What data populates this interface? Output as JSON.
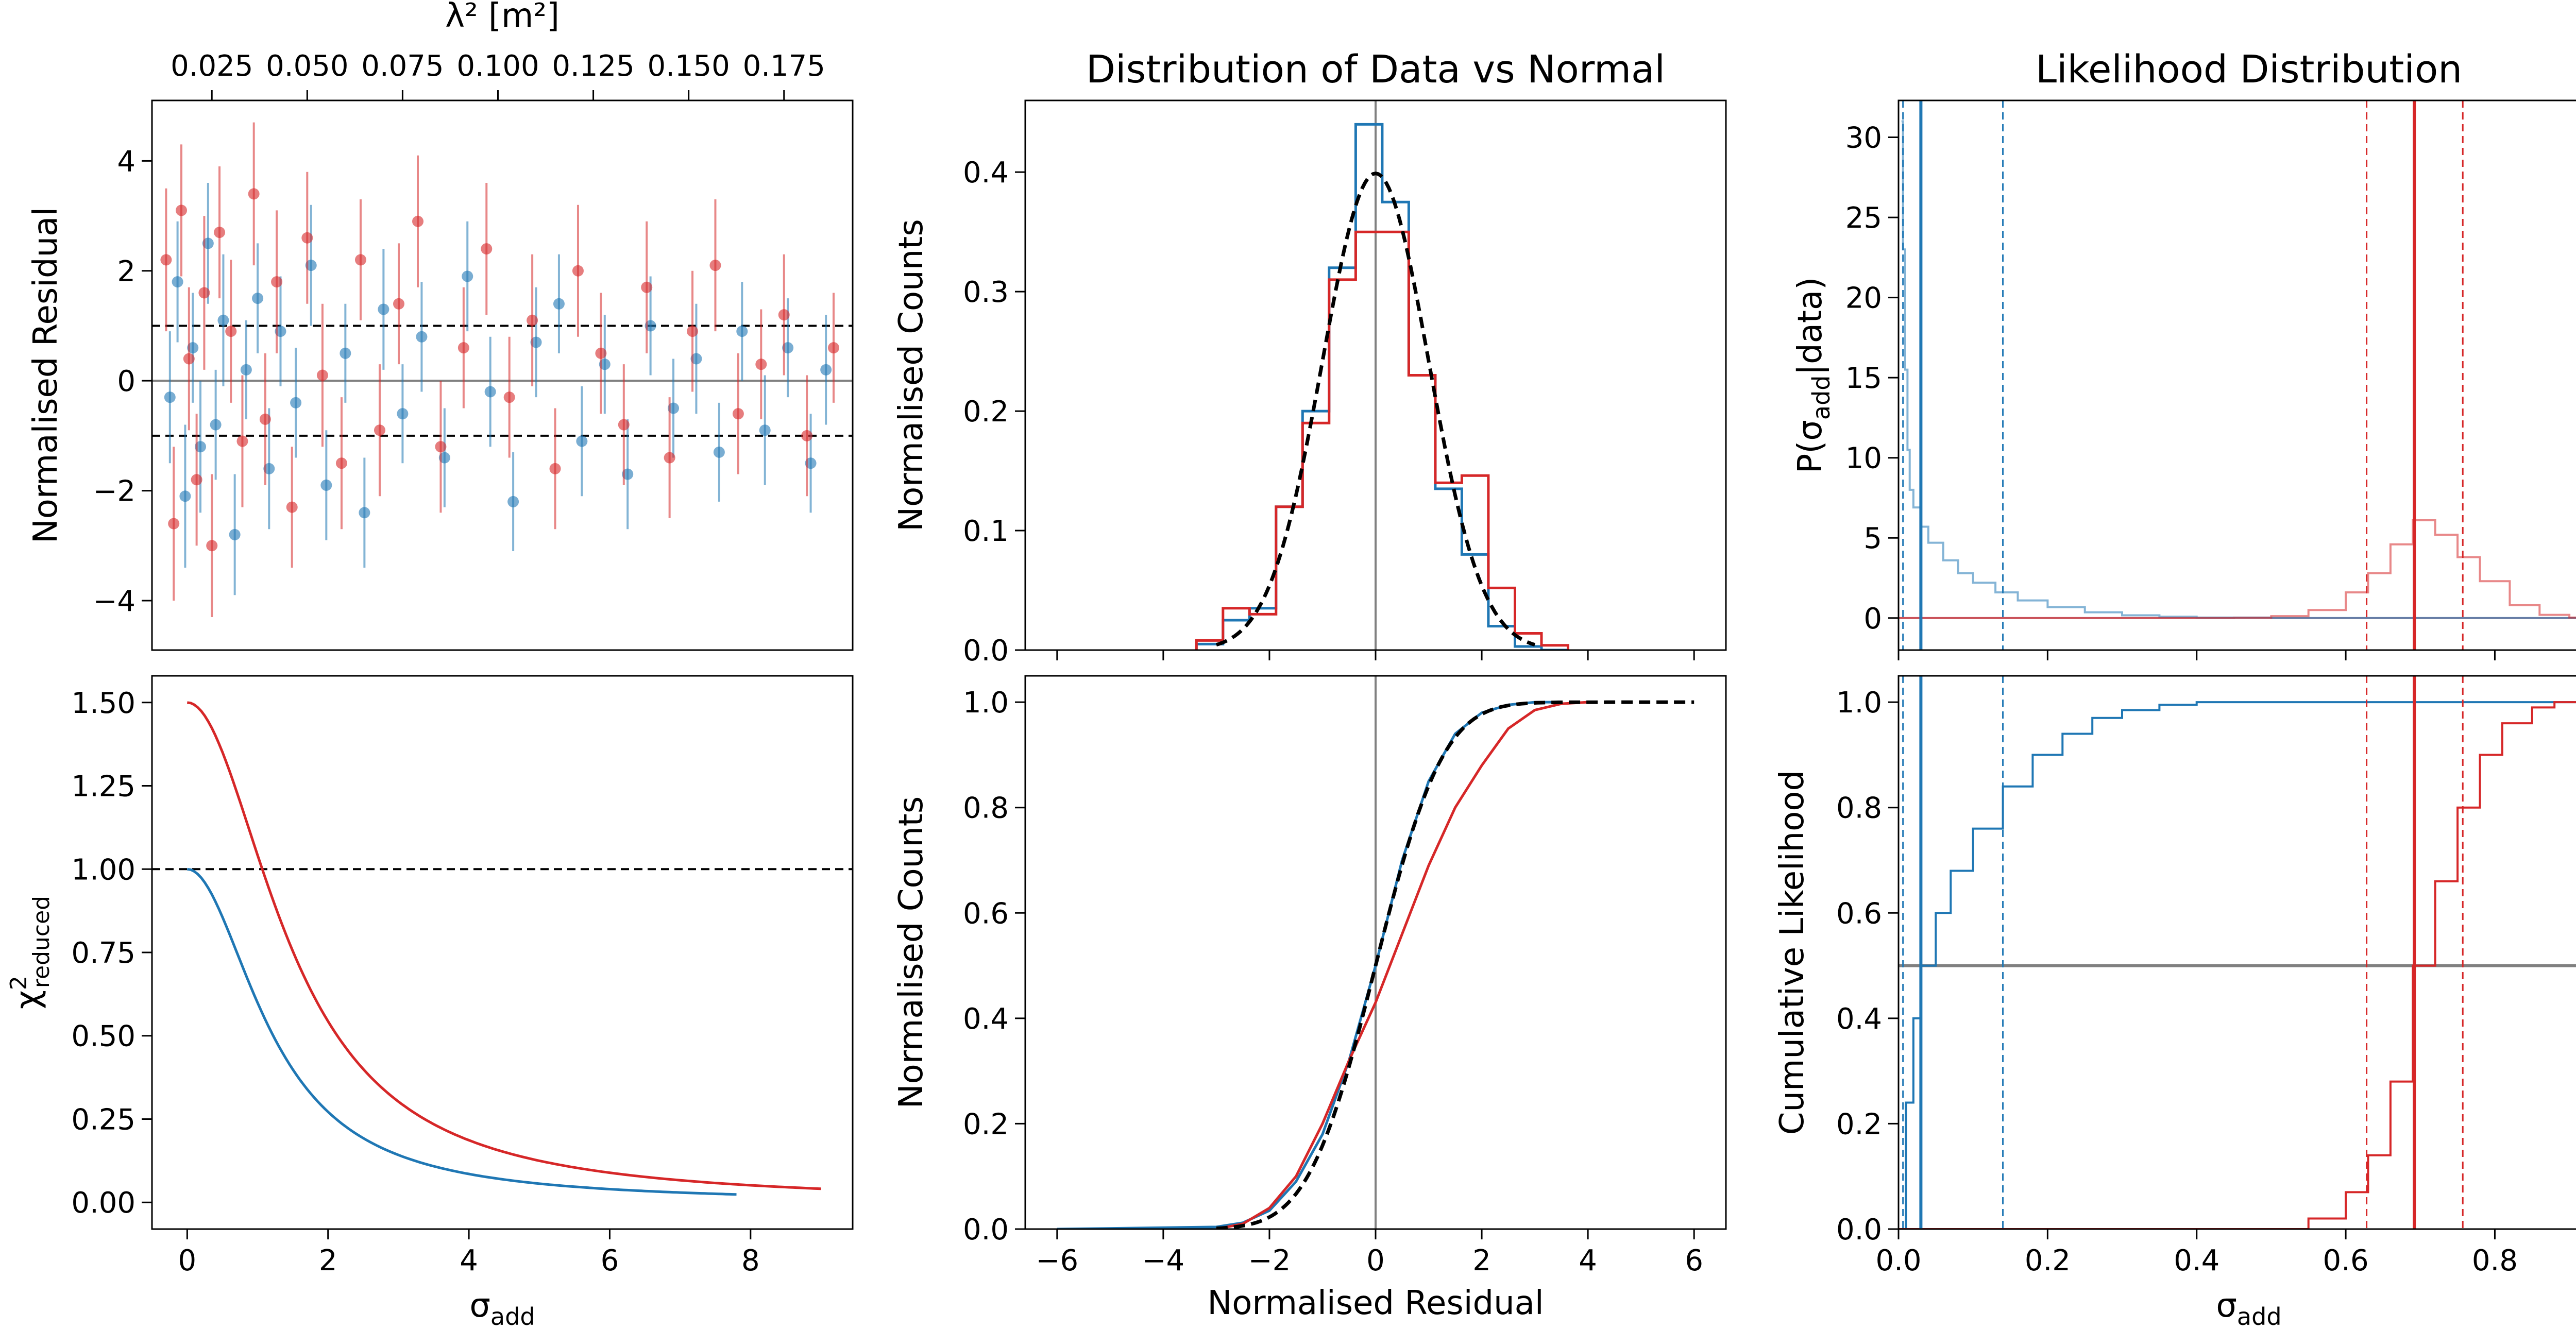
{
  "colors": {
    "blue": "#1f77b4",
    "red": "#d62728",
    "black": "#000000",
    "grey": "#808080"
  },
  "chart_data": [
    {
      "id": "residual_scatter",
      "type": "scatter",
      "title": "",
      "xlabel": "",
      "ylabel": "Normalised Residual",
      "top_xlabel": "λ² [m²]",
      "top_xlim": [
        0.0093,
        0.193
      ],
      "top_xticks": [
        0.025,
        0.05,
        0.075,
        0.1,
        0.125,
        0.15,
        0.175
      ],
      "top_xtick_labels": [
        "0.025",
        "0.050",
        "0.075",
        "0.100",
        "0.125",
        "0.150",
        "0.175"
      ],
      "xlim": [
        0.0093,
        0.193
      ],
      "ylim": [
        -4.9,
        5.1
      ],
      "yticks": [
        -4,
        -2,
        0,
        2,
        4
      ],
      "ytick_labels": [
        "−4",
        "−2",
        "0",
        "2",
        "4"
      ],
      "hlines": [
        {
          "y": 1,
          "style": "dashed",
          "color": "black"
        },
        {
          "y": -1,
          "style": "dashed",
          "color": "black"
        },
        {
          "y": 0,
          "style": "solid",
          "color": "grey"
        }
      ],
      "series": [
        {
          "name": "blue",
          "color": "blue",
          "x": [
            0.014,
            0.016,
            0.018,
            0.02,
            0.022,
            0.024,
            0.026,
            0.028,
            0.031,
            0.034,
            0.037,
            0.04,
            0.043,
            0.047,
            0.051,
            0.055,
            0.06,
            0.065,
            0.07,
            0.075,
            0.08,
            0.086,
            0.092,
            0.098,
            0.104,
            0.11,
            0.116,
            0.122,
            0.128,
            0.134,
            0.14,
            0.146,
            0.152,
            0.158,
            0.164,
            0.17,
            0.176,
            0.182,
            0.186
          ],
          "y": [
            -0.3,
            1.8,
            -2.1,
            0.6,
            -1.2,
            2.5,
            -0.8,
            1.1,
            -2.8,
            0.2,
            1.5,
            -1.6,
            0.9,
            -0.4,
            2.1,
            -1.9,
            0.5,
            -2.4,
            1.3,
            -0.6,
            0.8,
            -1.4,
            1.9,
            -0.2,
            -2.2,
            0.7,
            1.4,
            -1.1,
            0.3,
            -1.7,
            1.0,
            -0.5,
            0.4,
            -1.3,
            0.9,
            -0.9,
            0.6,
            -1.5,
            0.2
          ],
          "err": [
            1.2,
            1.1,
            1.3,
            1.0,
            1.2,
            1.1,
            1.0,
            1.2,
            1.1,
            0.9,
            1.0,
            1.1,
            1.0,
            1.0,
            1.1,
            1.0,
            0.9,
            1.0,
            1.1,
            0.9,
            1.0,
            0.9,
            1.0,
            1.0,
            0.9,
            1.0,
            0.9,
            1.0,
            0.9,
            1.0,
            0.9,
            0.9,
            1.0,
            0.9,
            0.9,
            1.0,
            0.9,
            0.9,
            1.0
          ]
        },
        {
          "name": "red",
          "color": "red",
          "x": [
            0.013,
            0.015,
            0.017,
            0.019,
            0.021,
            0.023,
            0.025,
            0.027,
            0.03,
            0.033,
            0.036,
            0.039,
            0.042,
            0.046,
            0.05,
            0.054,
            0.059,
            0.064,
            0.069,
            0.074,
            0.079,
            0.085,
            0.091,
            0.097,
            0.103,
            0.109,
            0.115,
            0.121,
            0.127,
            0.133,
            0.139,
            0.145,
            0.151,
            0.157,
            0.163,
            0.169,
            0.175,
            0.181,
            0.188
          ],
          "y": [
            2.2,
            -2.6,
            3.1,
            0.4,
            -1.8,
            1.6,
            -3.0,
            2.7,
            0.9,
            -1.1,
            3.4,
            -0.7,
            1.8,
            -2.3,
            2.6,
            0.1,
            -1.5,
            2.2,
            -0.9,
            1.4,
            2.9,
            -1.2,
            0.6,
            2.4,
            -0.3,
            1.1,
            -1.6,
            2.0,
            0.5,
            -0.8,
            1.7,
            -1.4,
            0.9,
            2.1,
            -0.6,
            0.3,
            1.2,
            -1.0,
            0.6
          ],
          "err": [
            1.3,
            1.4,
            1.2,
            1.3,
            1.2,
            1.4,
            1.3,
            1.2,
            1.3,
            1.2,
            1.3,
            1.2,
            1.3,
            1.1,
            1.2,
            1.3,
            1.2,
            1.1,
            1.2,
            1.1,
            1.2,
            1.2,
            1.1,
            1.2,
            1.1,
            1.2,
            1.1,
            1.2,
            1.1,
            1.1,
            1.2,
            1.1,
            1.1,
            1.2,
            1.1,
            1.0,
            1.1,
            1.1,
            1.0
          ]
        }
      ]
    },
    {
      "id": "residual_histogram",
      "type": "bar",
      "title": "Distribution of Data vs Normal",
      "xlabel": "",
      "ylabel": "Normalised Counts",
      "xlim": [
        -6.6,
        6.6
      ],
      "ylim": [
        0,
        0.46
      ],
      "xticks": [
        -6,
        -4,
        -2,
        0,
        2,
        4,
        6
      ],
      "yticks": [
        0.0,
        0.1,
        0.2,
        0.3,
        0.4
      ],
      "ytick_labels": [
        "0.0",
        "0.1",
        "0.2",
        "0.3",
        "0.4"
      ],
      "bin_edges": [
        -3.375,
        -2.875,
        -2.375,
        -1.875,
        -1.375,
        -0.875,
        -0.375,
        0.125,
        0.625,
        1.125,
        1.625,
        2.125,
        2.625,
        3.125,
        3.625
      ],
      "series": [
        {
          "name": "blue",
          "color": "blue",
          "values": [
            0.005,
            0.025,
            0.035,
            0.12,
            0.2,
            0.32,
            0.44,
            0.375,
            0.23,
            0.135,
            0.08,
            0.02,
            0.003,
            0.0
          ]
        },
        {
          "name": "red",
          "color": "red",
          "values": [
            0.008,
            0.035,
            0.03,
            0.12,
            0.19,
            0.31,
            0.35,
            0.35,
            0.23,
            0.14,
            0.146,
            0.052,
            0.014,
            0.004
          ]
        }
      ],
      "curve": {
        "name": "Normal",
        "style": "dashed",
        "color": "black",
        "mean": 0,
        "sigma": 1,
        "x_range": [
          -3,
          3
        ]
      },
      "vline": {
        "x": 0,
        "color": "grey"
      }
    },
    {
      "id": "likelihood_distribution",
      "type": "line",
      "title": "Likelihood Distribution",
      "xlabel": "",
      "ylabel": "P(σ_add | data)",
      "xlim": [
        0.0,
        0.94
      ],
      "ylim": [
        -2.0,
        32.3
      ],
      "yticks": [
        0,
        5,
        10,
        15,
        20,
        25,
        30
      ],
      "series": [
        {
          "name": "blue",
          "color": "blue",
          "x": [
            0.004,
            0.006,
            0.009,
            0.012,
            0.015,
            0.02,
            0.03,
            0.04,
            0.06,
            0.08,
            0.1,
            0.13,
            0.16,
            0.2,
            0.25,
            0.3,
            0.35,
            0.4,
            0.5,
            0.6,
            0.94
          ],
          "y": [
            31.0,
            23.0,
            15.5,
            10.5,
            8.0,
            6.9,
            5.7,
            4.7,
            3.6,
            2.8,
            2.2,
            1.6,
            1.1,
            0.68,
            0.36,
            0.17,
            0.08,
            0.03,
            0.0,
            0.0,
            0.0
          ]
        },
        {
          "name": "red",
          "color": "red",
          "x": [
            0.0,
            0.45,
            0.5,
            0.55,
            0.6,
            0.63,
            0.66,
            0.69,
            0.72,
            0.75,
            0.78,
            0.82,
            0.86,
            0.9,
            0.94
          ],
          "y": [
            0.0,
            0.02,
            0.12,
            0.5,
            1.6,
            2.8,
            4.6,
            6.1,
            5.2,
            3.8,
            2.3,
            0.8,
            0.2,
            0.03,
            0.0
          ]
        }
      ],
      "vlines": [
        {
          "x": 0.006,
          "color": "blue",
          "style": "dashed"
        },
        {
          "x": 0.03,
          "color": "blue",
          "style": "solid"
        },
        {
          "x": 0.14,
          "color": "blue",
          "style": "dashed"
        },
        {
          "x": 0.628,
          "color": "red",
          "style": "dashed"
        },
        {
          "x": 0.692,
          "color": "red",
          "style": "solid"
        },
        {
          "x": 0.757,
          "color": "red",
          "style": "dashed"
        }
      ],
      "hlines": [
        {
          "y": 0,
          "color": "blue"
        },
        {
          "y": 0,
          "color": "red"
        }
      ]
    },
    {
      "id": "chi2_reduced",
      "type": "line",
      "title": "",
      "xlabel": "σ_add",
      "ylabel": "χ²_reduced",
      "xlim": [
        -0.5,
        9.45
      ],
      "ylim": [
        -0.08,
        1.58
      ],
      "xticks": [
        0,
        2,
        4,
        6,
        8
      ],
      "yticks": [
        0.0,
        0.25,
        0.5,
        0.75,
        1.0,
        1.25,
        1.5
      ],
      "ytick_labels": [
        "0.00",
        "0.25",
        "0.50",
        "0.75",
        "1.00",
        "1.25",
        "1.50"
      ],
      "series": [
        {
          "name": "blue",
          "color": "blue",
          "formula": "1.0 / (1 + 0.67 * s^2)",
          "x_range": [
            0.0,
            7.8
          ]
        },
        {
          "name": "red",
          "color": "red",
          "formula": "1.5 / (1 + 0.44 * s^2)",
          "x_range": [
            0.0,
            9.0
          ]
        }
      ],
      "hlines": [
        {
          "y": 1.0,
          "style": "dashed",
          "color": "black"
        }
      ]
    },
    {
      "id": "residual_cdf",
      "type": "line",
      "title": "",
      "xlabel": "Normalised Residual",
      "ylabel": "Normalised Counts",
      "xlim": [
        -6.6,
        6.6
      ],
      "ylim": [
        0,
        1.05
      ],
      "xticks": [
        -6,
        -4,
        -2,
        0,
        2,
        4,
        6
      ],
      "xtick_labels": [
        "−6",
        "−4",
        "−2",
        "0",
        "2",
        "4",
        "6"
      ],
      "yticks": [
        0.0,
        0.2,
        0.4,
        0.6,
        0.8,
        1.0
      ],
      "ytick_labels": [
        "0.0",
        "0.2",
        "0.4",
        "0.6",
        "0.8",
        "1.0"
      ],
      "series": [
        {
          "name": "blue",
          "color": "blue",
          "x": [
            -6.0,
            -3.0,
            -2.5,
            -2.0,
            -1.5,
            -1.0,
            -0.5,
            0.0,
            0.5,
            1.0,
            1.5,
            2.0,
            2.5,
            3.0,
            3.5
          ],
          "y": [
            0.0,
            0.004,
            0.012,
            0.035,
            0.09,
            0.18,
            0.32,
            0.5,
            0.7,
            0.85,
            0.94,
            0.98,
            0.995,
            1.0,
            1.0
          ]
        },
        {
          "name": "red",
          "color": "red",
          "x": [
            -3.0,
            -2.5,
            -2.0,
            -1.5,
            -1.0,
            -0.5,
            0.0,
            0.5,
            1.0,
            1.5,
            2.0,
            2.5,
            3.0,
            3.5,
            4.0
          ],
          "y": [
            0.0,
            0.01,
            0.04,
            0.1,
            0.2,
            0.32,
            0.43,
            0.56,
            0.69,
            0.8,
            0.88,
            0.95,
            0.985,
            0.997,
            1.0
          ]
        },
        {
          "name": "Normal",
          "color": "black",
          "style": "dashed",
          "formula": "normal_cdf(0,1)",
          "x_range": [
            -3.0,
            6.0
          ]
        }
      ],
      "vline": {
        "x": 0,
        "color": "grey"
      }
    },
    {
      "id": "cumulative_likelihood",
      "type": "line",
      "title": "",
      "xlabel": "σ_add",
      "ylabel": "Cumulative Likelihood",
      "xlim": [
        0.0,
        0.94
      ],
      "ylim": [
        0,
        1.05
      ],
      "xticks": [
        0.0,
        0.2,
        0.4,
        0.6,
        0.8
      ],
      "xtick_labels": [
        "0.0",
        "0.2",
        "0.4",
        "0.6",
        "0.8"
      ],
      "yticks": [
        0.0,
        0.2,
        0.4,
        0.6,
        0.8,
        1.0
      ],
      "ytick_labels": [
        "0.0",
        "0.2",
        "0.4",
        "0.6",
        "0.8",
        "1.0"
      ],
      "series": [
        {
          "name": "blue",
          "color": "blue",
          "x": [
            0.0,
            0.01,
            0.02,
            0.03,
            0.05,
            0.07,
            0.1,
            0.14,
            0.18,
            0.22,
            0.26,
            0.3,
            0.35,
            0.4,
            0.5,
            0.94
          ],
          "y": [
            0.0,
            0.24,
            0.4,
            0.5,
            0.6,
            0.68,
            0.76,
            0.84,
            0.9,
            0.94,
            0.97,
            0.985,
            0.995,
            1.0,
            1.0,
            1.0
          ]
        },
        {
          "name": "red",
          "color": "red",
          "x": [
            0.0,
            0.5,
            0.55,
            0.6,
            0.63,
            0.66,
            0.69,
            0.72,
            0.75,
            0.78,
            0.81,
            0.85,
            0.88,
            0.94
          ],
          "y": [
            0.0,
            0.0,
            0.02,
            0.07,
            0.14,
            0.28,
            0.5,
            0.66,
            0.8,
            0.9,
            0.96,
            0.99,
            1.0,
            1.0
          ]
        }
      ],
      "vlines": [
        {
          "x": 0.006,
          "color": "blue",
          "style": "dashed"
        },
        {
          "x": 0.03,
          "color": "blue",
          "style": "solid"
        },
        {
          "x": 0.14,
          "color": "blue",
          "style": "dashed"
        },
        {
          "x": 0.628,
          "color": "red",
          "style": "dashed"
        },
        {
          "x": 0.692,
          "color": "red",
          "style": "solid"
        },
        {
          "x": 0.757,
          "color": "red",
          "style": "dashed"
        }
      ],
      "hlines": [
        {
          "y": 0.5,
          "color": "grey"
        }
      ]
    }
  ]
}
